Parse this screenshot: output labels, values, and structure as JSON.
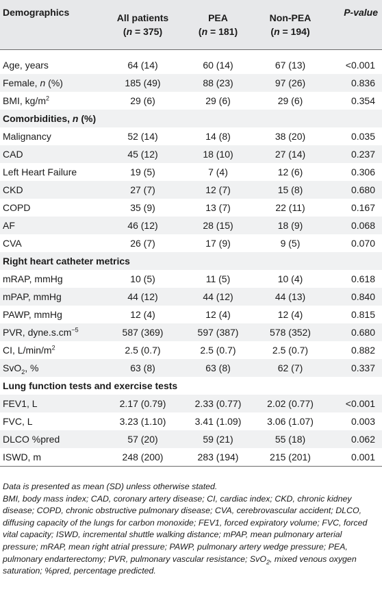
{
  "header": {
    "col0": "Demographics",
    "col1": "All patients",
    "col1_n": "(n = 375)",
    "col2": "PEA",
    "col2_n": "(n = 181)",
    "col3": "Non-PEA",
    "col3_n": "(n = 194)",
    "col4": "P-value"
  },
  "rows": {
    "age": {
      "label": "Age, years",
      "all": "64 (14)",
      "pea": "60 (14)",
      "non": "67 (13)",
      "p": "<0.001"
    },
    "female": {
      "label_a": "Female, ",
      "label_b": "n",
      "label_c": " (%)",
      "all": "185 (49)",
      "pea": "88 (23)",
      "non": "97 (26)",
      "p": "0.836"
    },
    "bmi": {
      "label_a": "BMI, kg/m",
      "label_sup": "2",
      "all": "29 (6)",
      "pea": "29 (6)",
      "non": "29 (6)",
      "p": "0.354"
    },
    "comorb": {
      "label_a": "Comorbidities, ",
      "label_b": "n",
      "label_c": " (%)"
    },
    "malig": {
      "label": "Malignancy",
      "all": "52 (14)",
      "pea": "14 (8)",
      "non": "38 (20)",
      "p": "0.035"
    },
    "cad": {
      "label": "CAD",
      "all": "45 (12)",
      "pea": "18 (10)",
      "non": "27 (14)",
      "p": "0.237"
    },
    "lhf": {
      "label": "Left Heart Failure",
      "all": "19 (5)",
      "pea": "7 (4)",
      "non": "12 (6)",
      "p": "0.306"
    },
    "ckd": {
      "label": "CKD",
      "all": "27 (7)",
      "pea": "12 (7)",
      "non": "15 (8)",
      "p": "0.680"
    },
    "copd": {
      "label": "COPD",
      "all": "35 (9)",
      "pea": "13 (7)",
      "non": "22 (11)",
      "p": "0.167"
    },
    "af": {
      "label": "AF",
      "all": "46 (12)",
      "pea": "28 (15)",
      "non": "18 (9)",
      "p": "0.068"
    },
    "cva": {
      "label": "CVA",
      "all": "26 (7)",
      "pea": "17 (9)",
      "non": "9 (5)",
      "p": "0.070"
    },
    "rhc": {
      "label": "Right heart catheter metrics"
    },
    "mrap": {
      "label": "mRAP, mmHg",
      "all": "10 (5)",
      "pea": "11 (5)",
      "non": "10 (4)",
      "p": "0.618"
    },
    "mpap": {
      "label": "mPAP, mmHg",
      "all": "44 (12)",
      "pea": "44 (12)",
      "non": "44 (13)",
      "p": "0.840"
    },
    "pawp": {
      "label": "PAWP, mmHg",
      "all": "12 (4)",
      "pea": "12 (4)",
      "non": "12 (4)",
      "p": "0.815"
    },
    "pvr": {
      "label_a": "PVR, dyne.s.cm",
      "label_sup": "−5",
      "all": "587 (369)",
      "pea": "597 (387)",
      "non": "578 (352)",
      "p": "0.680"
    },
    "ci": {
      "label_a": "CI, L/min/m",
      "label_sup": "2",
      "all": "2.5 (0.7)",
      "pea": "2.5 (0.7)",
      "non": "2.5 (0.7)",
      "p": "0.882"
    },
    "svo2": {
      "label_a": "SvO",
      "label_sub": "2",
      "label_c": ", %",
      "all": "63 (8)",
      "pea": "63 (8)",
      "non": "62 (7)",
      "p": "0.337"
    },
    "lung": {
      "label": "Lung function tests and exercise tests"
    },
    "fev1": {
      "label": "FEV1, L",
      "all": "2.17 (0.79)",
      "pea": "2.33 (0.77)",
      "non": "2.02 (0.77)",
      "p": "<0.001"
    },
    "fvc": {
      "label": "FVC, L",
      "all": "3.23 (1.10)",
      "pea": "3.41 (1.09)",
      "non": "3.06 (1.07)",
      "p": "0.003"
    },
    "dlco": {
      "label": "DLCO %pred",
      "all": "57 (20)",
      "pea": "59 (21)",
      "non": "55 (18)",
      "p": "0.062"
    },
    "iswd": {
      "label": "ISWD, m",
      "all": "248 (200)",
      "pea": "283 (194)",
      "non": "215 (201)",
      "p": "0.001"
    }
  },
  "notes": {
    "line1": "Data is presented as mean (SD) unless otherwise stated.",
    "abbr_a": "BMI, body mass index; CAD, coronary artery disease; CI, cardiac index; CKD, chronic kidney disease; COPD, chronic obstructive pulmonary disease; CVA, cerebrovascular accident; DLCO, diffusing capacity of the lungs for carbon monoxide; FEV1, forced expiratory volume; FVC, forced vital capacity; ISWD, incremental shuttle walking distance; mPAP, mean pulmonary arterial pressure; mRAP, mean right atrial pressure; PAWP, pulmonary artery wedge pressure; PEA, pulmonary endarterectomy; PVR, pulmonary vascular resistance; SvO",
    "abbr_sub": "2",
    "abbr_b": ", mixed venous oxygen saturation; %pred, percentage predicted."
  }
}
